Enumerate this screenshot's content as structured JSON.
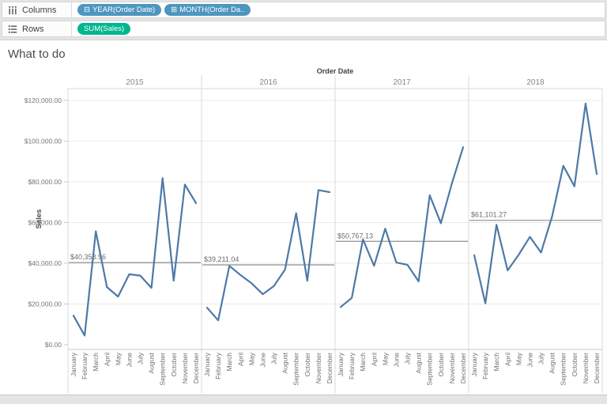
{
  "shelves": {
    "columns": {
      "label": "Columns",
      "pills": [
        {
          "text": "YEAR(Order Date)",
          "icon": "minus-box",
          "glyph": "⊟"
        },
        {
          "text": "MONTH(Order Da..",
          "icon": "plus-box",
          "glyph": "⊞"
        }
      ]
    },
    "rows": {
      "label": "Rows",
      "pills": [
        {
          "text": "SUM(Sales)"
        }
      ]
    }
  },
  "sheet": {
    "title": "What to do"
  },
  "colors": {
    "dimension_pill": "#4d96bf",
    "measure_pill": "#00b58f",
    "line": "#4e79a7",
    "reference_line": "#8f8f8f",
    "gridline": "#ebebeb",
    "panel_border": "#d9d9d9",
    "axis_line": "#c8c8c8",
    "tick_text": "#767676",
    "header_text": "#878787"
  },
  "chart_data": {
    "type": "line",
    "title": "Order Date",
    "ylabel": "Sales",
    "column_fields": [
      "YEAR(Order Date)",
      "MONTH(Order Date)"
    ],
    "row_field": "SUM(Sales)",
    "categories": [
      "January",
      "February",
      "March",
      "April",
      "May",
      "June",
      "July",
      "August",
      "September",
      "October",
      "November",
      "December"
    ],
    "y_ticks": {
      "values": [
        0,
        20000,
        40000,
        60000,
        80000,
        100000,
        120000
      ],
      "labels": [
        "$0.00",
        "$20,000.00",
        "$40,000.00",
        "$60,000.00",
        "$80,000.00",
        "$100,000.00",
        "$120,000.00"
      ]
    },
    "ylim": [
      0,
      124000
    ],
    "grid": "horizontal",
    "legend": "none",
    "series": [
      {
        "year": "2015",
        "values": [
          14236.9,
          4519.89,
          55691.01,
          28295.35,
          23648.29,
          34595.13,
          33946.39,
          27909.47,
          81777.35,
          31453.39,
          78628.72,
          69545.62
        ],
        "reference_line": {
          "value": 40353.96,
          "label": "$40,353.96"
        }
      },
      {
        "year": "2016",
        "values": [
          18174.08,
          11951.41,
          38726.25,
          34195.21,
          30131.69,
          24797.29,
          28765.33,
          36898.33,
          64595.92,
          31404.92,
          75972.56,
          74919.52
        ],
        "reference_line": {
          "value": 39211.04,
          "label": "$39,211.04"
        }
      },
      {
        "year": "2017",
        "values": [
          18542.49,
          22978.82,
          51715.88,
          38750.04,
          56987.73,
          40344.53,
          39261.96,
          31115.37,
          73410.02,
          59687.75,
          79411.97,
          96999.04
        ],
        "reference_line": {
          "value": 50767.13,
          "label": "$50,767.13"
        }
      },
      {
        "year": "2018",
        "values": [
          43971.37,
          20301.13,
          58872.35,
          36521.54,
          44261.11,
          52981.73,
          45264.42,
          63120.89,
          87866.65,
          77776.92,
          118447.82,
          83829.32
        ],
        "reference_line": {
          "value": 61101.27,
          "label": "$61,101.27"
        }
      }
    ]
  }
}
